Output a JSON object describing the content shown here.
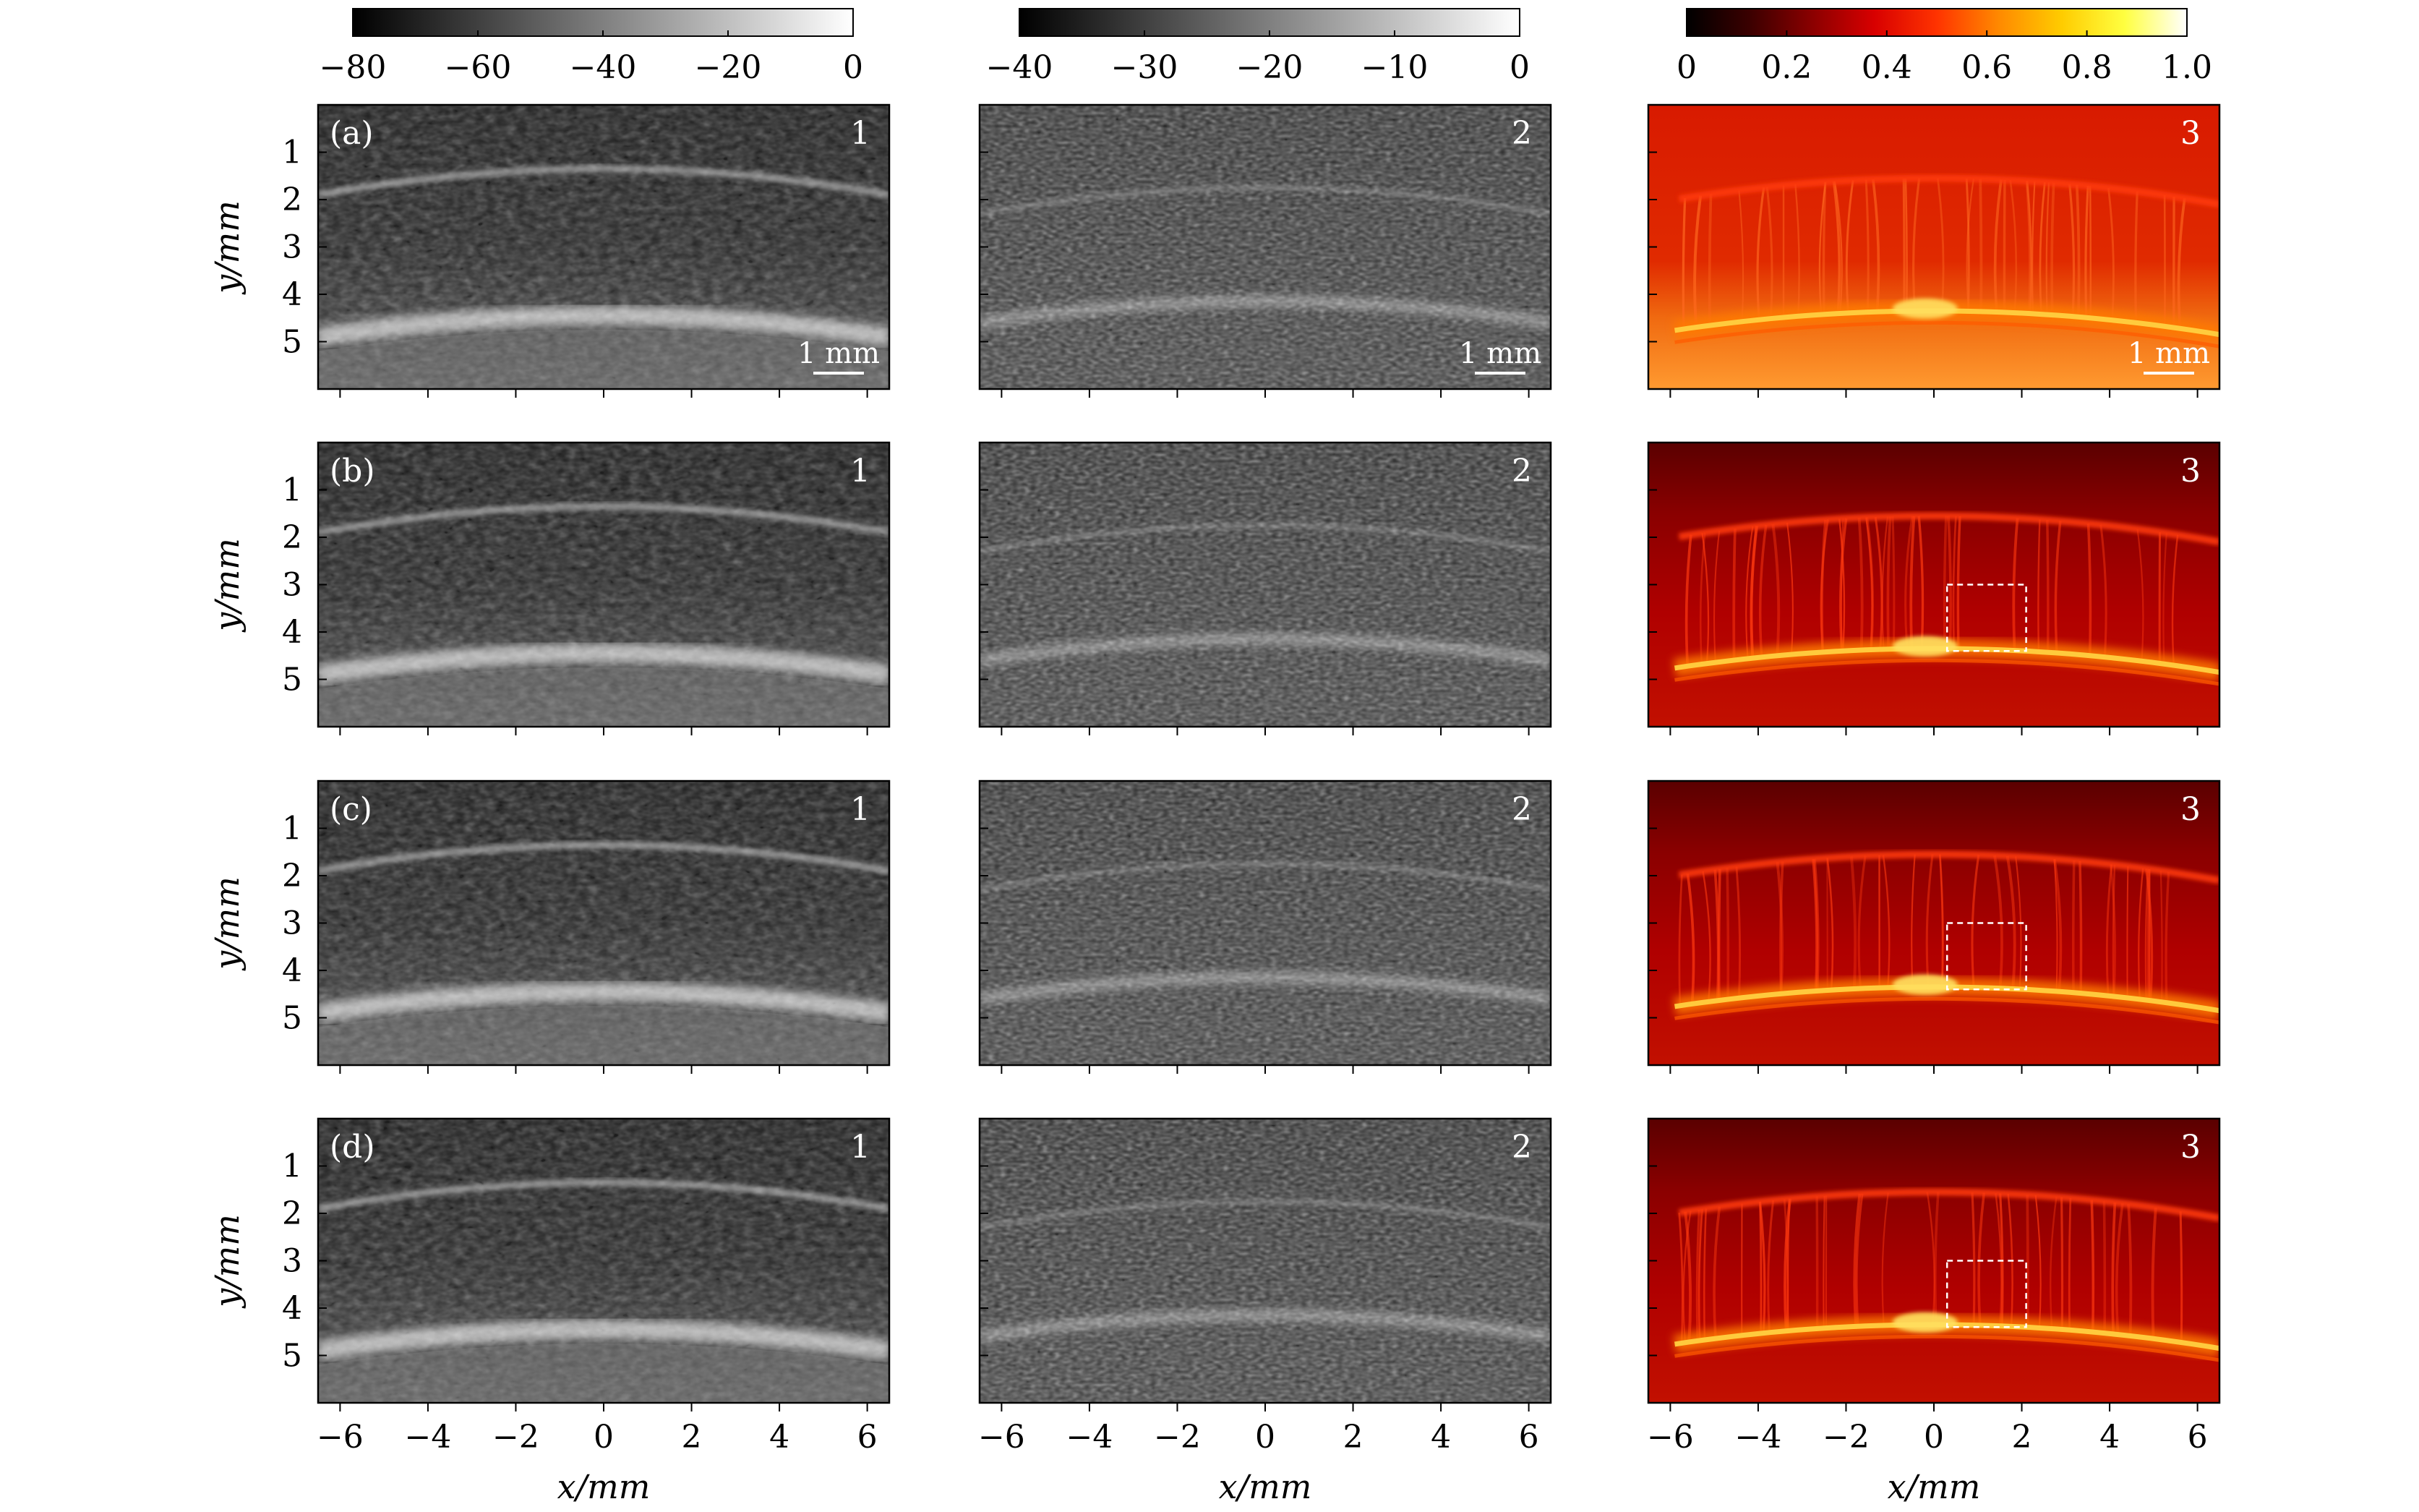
{
  "colorbars": [
    {
      "tick_labels": [
        "−80",
        "−60",
        "−40",
        "−20",
        "0"
      ],
      "range": [
        -80,
        0
      ],
      "colormap": "gray"
    },
    {
      "tick_labels": [
        "−40",
        "−30",
        "−20",
        "−10",
        "0"
      ],
      "range": [
        -40,
        0
      ],
      "colormap": "gray"
    },
    {
      "tick_labels": [
        "0",
        "0.2",
        "0.4",
        "0.6",
        "0.8",
        "1.0"
      ],
      "range": [
        0,
        1
      ],
      "colormap": "hot"
    }
  ],
  "colors": {
    "hot_gradient": [
      "#000000",
      "#3a0000",
      "#8a0000",
      "#d80000",
      "#ff3300",
      "#ff8a00",
      "#ffcc00",
      "#ffff40",
      "#ffffff"
    ],
    "panel_border": "#000000",
    "overlay_text": "#ffffff"
  },
  "row_labels": [
    "(a)",
    "(b)",
    "(c)",
    "(d)"
  ],
  "column_labels": [
    "1",
    "2",
    "3"
  ],
  "scale_bar_text": "1 mm",
  "y_axis": {
    "label": "y/mm",
    "tick_labels": [
      "1",
      "2",
      "3",
      "4",
      "5"
    ]
  },
  "x_axis": {
    "label": "x/mm",
    "tick_labels": [
      "−6",
      "−4",
      "−2",
      "0",
      "2",
      "4",
      "6"
    ]
  },
  "roi_box": {
    "style": "dashed",
    "color": "#ffffff",
    "rows_with_box": [
      "(b)",
      "(c)",
      "(d)"
    ],
    "column": "3"
  }
}
